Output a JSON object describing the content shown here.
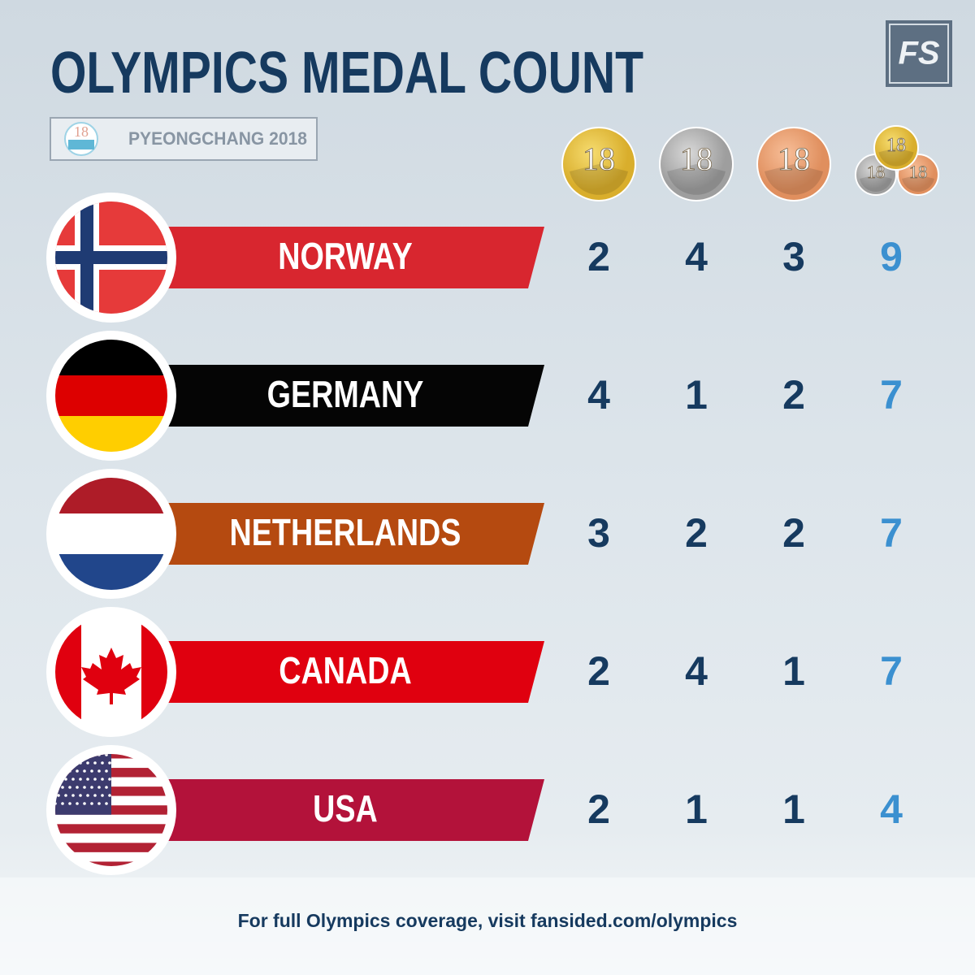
{
  "header": {
    "title": "OLYMPICS MEDAL COUNT",
    "subtitle": "PYEONGCHANG 2018",
    "logo": "FS",
    "emblem": "18"
  },
  "table": {
    "rows": [
      {
        "country": "NORWAY",
        "gold": 2,
        "silver": 4,
        "bronze": 3,
        "total": 9
      },
      {
        "country": "GERMANY",
        "gold": 4,
        "silver": 1,
        "bronze": 2,
        "total": 7
      },
      {
        "country": "NETHERLANDS",
        "gold": 3,
        "silver": 2,
        "bronze": 2,
        "total": 7
      },
      {
        "country": "CANADA",
        "gold": 2,
        "silver": 4,
        "bronze": 1,
        "total": 7
      },
      {
        "country": "USA",
        "gold": 2,
        "silver": 1,
        "bronze": 1,
        "total": 4
      }
    ]
  },
  "footer": "For full Olympics coverage, visit fansided.com/olympics"
}
